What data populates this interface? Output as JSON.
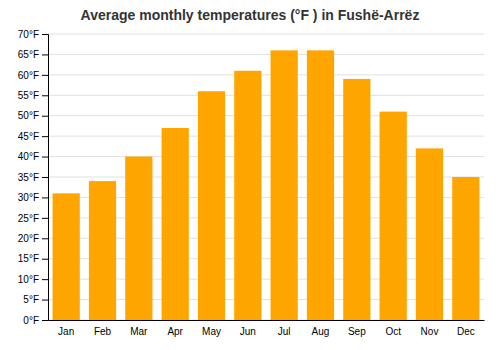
{
  "chart_data": {
    "type": "bar",
    "title": "Average monthly temperatures (°F ) in Fushë-Arrëz",
    "categories": [
      "Jan",
      "Feb",
      "Mar",
      "Apr",
      "May",
      "Jun",
      "Jul",
      "Aug",
      "Sep",
      "Oct",
      "Nov",
      "Dec"
    ],
    "values": [
      31,
      34,
      40,
      47,
      56,
      61,
      66,
      66,
      59,
      51,
      42,
      35
    ],
    "color": "#FFA500",
    "ylim": [
      0,
      70
    ],
    "yticks": [
      {
        "value": 0,
        "label": "0°F"
      },
      {
        "value": 5,
        "label": "5°F"
      },
      {
        "value": 10,
        "label": "10°F"
      },
      {
        "value": 15,
        "label": "15°F"
      },
      {
        "value": 20,
        "label": "20°F"
      },
      {
        "value": 25,
        "label": "25°F"
      },
      {
        "value": 30,
        "label": "30°F"
      },
      {
        "value": 35,
        "label": "35°F"
      },
      {
        "value": 40,
        "label": "40°F"
      },
      {
        "value": 45,
        "label": "45°F"
      },
      {
        "value": 50,
        "label": "50°F"
      },
      {
        "value": 55,
        "label": "55°F"
      },
      {
        "value": 60,
        "label": "60°F"
      },
      {
        "value": 65,
        "label": "65°F"
      },
      {
        "value": 70,
        "label": "70°F"
      }
    ],
    "grid": true
  }
}
